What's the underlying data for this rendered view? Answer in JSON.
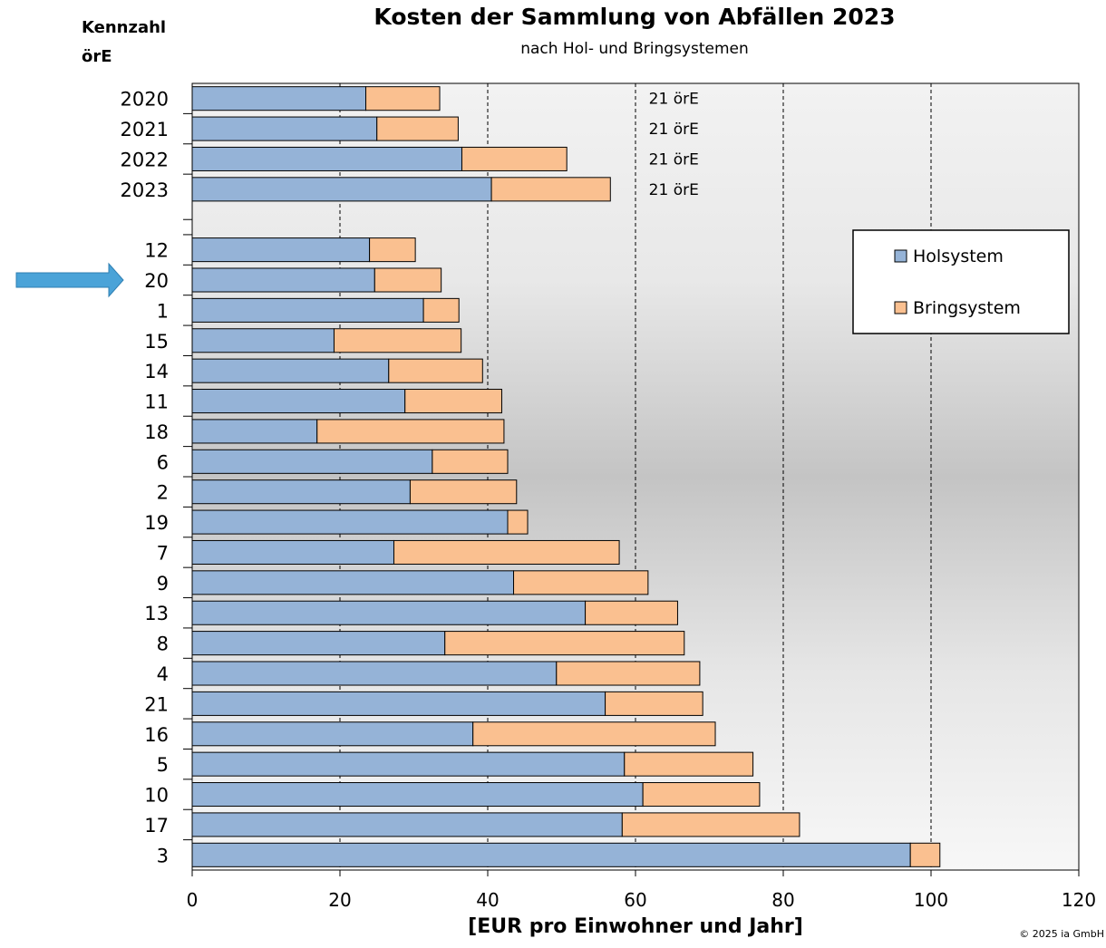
{
  "chart_data": {
    "type": "bar",
    "orientation": "horizontal",
    "stacked": true,
    "title": "Kosten  der Sammlung von Abfällen 2023",
    "subtitle": "nach Hol- und Bringsystemen",
    "category_header": [
      "Kennzahl",
      "örE"
    ],
    "xlabel": "[EUR pro Einwohner und Jahr]",
    "xlim": [
      0,
      120
    ],
    "xticks": [
      0,
      20,
      40,
      60,
      80,
      100,
      120
    ],
    "grid": "vertical dashed",
    "legend_position": "right",
    "categories": [
      "2020",
      "2021",
      "2022",
      "2023",
      "12",
      "20",
      "1",
      "15",
      "14",
      "11",
      "18",
      "6",
      "2",
      "19",
      "7",
      "9",
      "13",
      "8",
      "4",
      "21",
      "16",
      "5",
      "10",
      "17",
      "3"
    ],
    "gap_after_index": 3,
    "highlighted_category": "20",
    "series": [
      {
        "name": "Holsystem",
        "color": "#95b3d7",
        "values": [
          23.5,
          25,
          36.5,
          40.5,
          24,
          24.7,
          31.3,
          19.2,
          26.6,
          28.8,
          16.9,
          32.5,
          29.5,
          42.7,
          27.3,
          43.5,
          53.2,
          34.2,
          49.3,
          55.9,
          38,
          58.5,
          61,
          58.2,
          97.2
        ]
      },
      {
        "name": "Bringsystem",
        "color": "#fac090",
        "values": [
          10,
          11,
          14.2,
          16.1,
          6.2,
          9,
          4.8,
          17.2,
          12.7,
          13.1,
          25.3,
          10.2,
          14.4,
          2.7,
          30.5,
          18.2,
          12.5,
          32.4,
          19.4,
          13.2,
          32.8,
          17.4,
          15.8,
          24,
          4
        ]
      }
    ],
    "annotations": [
      {
        "category": "2020",
        "text": "21 örE"
      },
      {
        "category": "2021",
        "text": "21 örE"
      },
      {
        "category": "2022",
        "text": "21 örE"
      },
      {
        "category": "2023",
        "text": "21 örE"
      }
    ]
  },
  "footer": {
    "copyright": "© 2025 ia GmbH"
  },
  "colors": {
    "arrow": "#4aa3d8",
    "bar_border": "#000000",
    "grid": "#000000"
  },
  "marker_icon": "right-arrow-icon"
}
